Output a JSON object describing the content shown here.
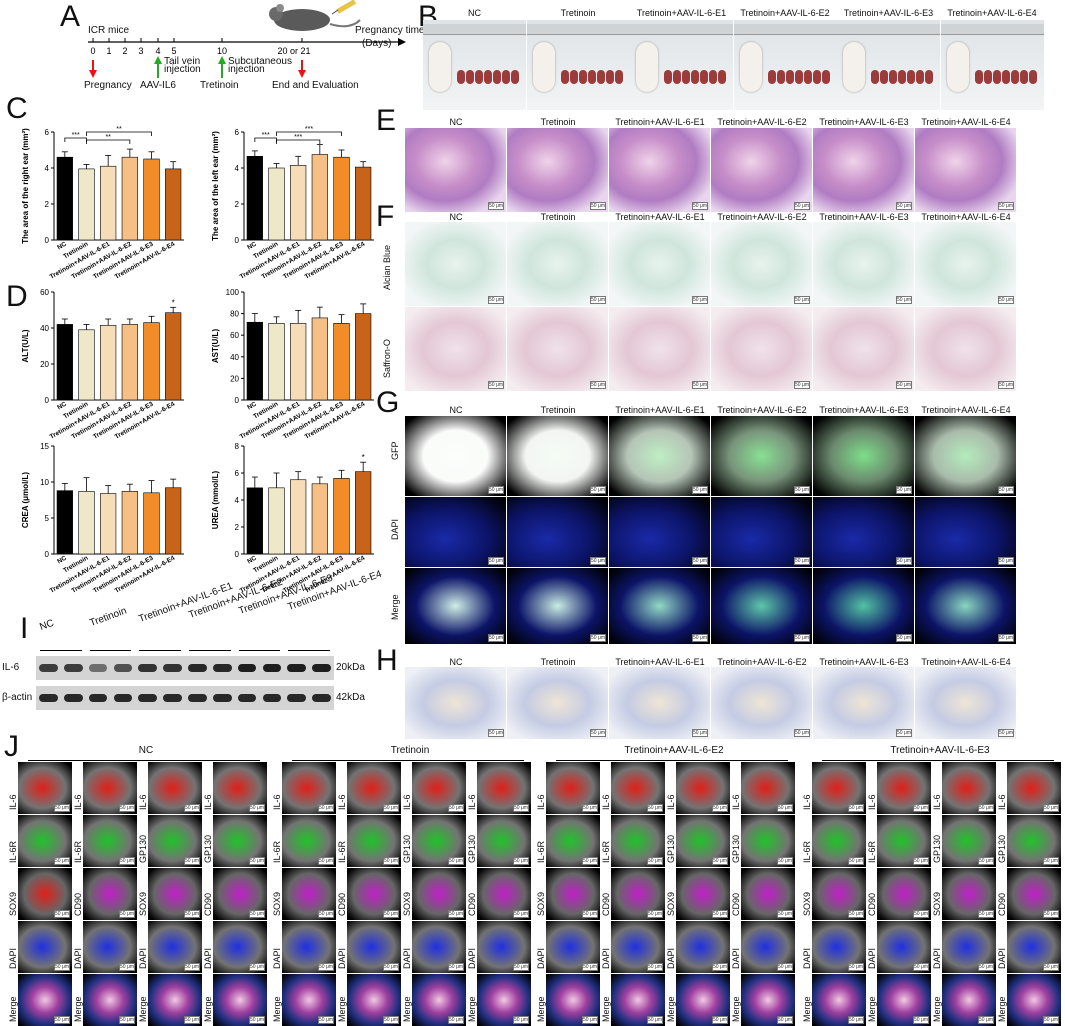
{
  "panels": {
    "A": "A",
    "B": "B",
    "C": "C",
    "D": "D",
    "E": "E",
    "F": "F",
    "G": "G",
    "H": "H",
    "I": "I",
    "J": "J"
  },
  "timeline": {
    "mouse_label": "ICR mice",
    "ticks": [
      "0",
      "1",
      "2",
      "3",
      "4",
      "5",
      "10",
      "20 or 21"
    ],
    "axis_label": "Pregnancy time",
    "axis_unit": "(Days)",
    "events": [
      "Pregnancy",
      "AAV-IL6",
      "Tretinoin",
      "End and Evaluation"
    ],
    "notes": [
      "Tail vein injection",
      "Subcutaneous injection"
    ]
  },
  "groups_full": [
    "NC",
    "Tretinoin",
    "Tretinoin+AAV-IL-6-E1",
    "Tretinoin+AAV-IL-6-E2",
    "Tretinoin+AAV-IL-6-E3",
    "Tretinoin+AAV-IL-6-E4"
  ],
  "groups_short": [
    "NC",
    "Tretinoin",
    "Tretinoin+AAV-IL-6-E1",
    "Tretinoin+AAV-IL-6-E2",
    "Tretinoin+AAV-IL-6-E3",
    "Tretinoin+AAV-IL-6-E4"
  ],
  "bar_colors": [
    "#000000",
    "#efe8c8",
    "#f7dcb8",
    "#f5bf86",
    "#f28c28",
    "#c8641a"
  ],
  "stains_F": [
    "Alcian Blue",
    "Saffron-O"
  ],
  "stains_G": [
    "GFP",
    "DAPI",
    "Merge"
  ],
  "scale_bar": "50 μm",
  "western": {
    "groups": [
      "NC",
      "Tretinoin",
      "Tretinoin+AAV-IL-6-E1",
      "Tretinoin+AAV-IL-6-E2",
      "Tretinoin+AAV-IL-6-E3",
      "Tretinoin+AAV-IL-6-E4"
    ],
    "rows": [
      {
        "name": "IL-6",
        "size": "20kDa"
      },
      {
        "name": "β-actin",
        "size": "42kDa"
      }
    ],
    "il6_intensity": [
      0.8,
      0.8,
      0.55,
      0.7,
      0.85,
      0.85,
      0.9,
      0.9,
      0.95,
      0.95,
      0.95,
      0.95
    ]
  },
  "J": {
    "groups": [
      "NC",
      "Tretinoin",
      "Tretinoin+AAV-IL-6-E2",
      "Tretinoin+AAV-IL-6-E3"
    ],
    "grid": [
      [
        "IL-6",
        "IL-6",
        "IL-6",
        "IL-6"
      ],
      [
        "IL-6R",
        "IL-6R",
        "GP130",
        "GP130"
      ],
      [
        "SOX9",
        "CD90",
        "SOX9",
        "CD90"
      ],
      [
        "DAPI",
        "DAPI",
        "DAPI",
        "DAPI"
      ],
      [
        "Merge",
        "Merge",
        "Merge",
        "Merge"
      ]
    ],
    "row_colors": [
      "#e0201a",
      "#22c22a",
      "#c020c8",
      "#2030e0",
      "#e080c0"
    ]
  },
  "chart_data": [
    {
      "type": "bar",
      "panel": "C-left",
      "ylabel": "The area of the right ear (mm²)",
      "ylim": [
        0,
        6
      ],
      "yticks": [
        0,
        2,
        4,
        6
      ],
      "categories": [
        "NC",
        "Tretinoin",
        "Tretinoin+AAV-IL-6-E1",
        "Tretinoin+AAV-IL-6-E2",
        "Tretinoin+AAV-IL-6-E3",
        "Tretinoin+AAV-IL-6-E4"
      ],
      "values": [
        4.6,
        3.95,
        4.1,
        4.6,
        4.5,
        3.95
      ],
      "errors": [
        0.3,
        0.25,
        0.6,
        0.45,
        0.4,
        0.4
      ],
      "significance": [
        [
          "***",
          0,
          1
        ],
        [
          "**",
          1,
          4
        ],
        [
          "**",
          1,
          3
        ]
      ]
    },
    {
      "type": "bar",
      "panel": "C-right",
      "ylabel": "The area of the left ear (mm²)",
      "ylim": [
        0,
        6
      ],
      "yticks": [
        0,
        2,
        4,
        6
      ],
      "categories": [
        "NC",
        "Tretinoin",
        "Tretinoin+AAV-IL-6-E1",
        "Tretinoin+AAV-IL-6-E2",
        "Tretinoin+AAV-IL-6-E3",
        "Tretinoin+AAV-IL-6-E4"
      ],
      "values": [
        4.65,
        4.0,
        4.15,
        4.75,
        4.6,
        4.05
      ],
      "errors": [
        0.3,
        0.25,
        0.5,
        0.55,
        0.4,
        0.3
      ],
      "significance": [
        [
          "***",
          0,
          1
        ],
        [
          "***",
          1,
          4
        ],
        [
          "***",
          1,
          3
        ]
      ]
    },
    {
      "type": "bar",
      "panel": "D-ALT",
      "ylabel": "ALT(U/L)",
      "ylim": [
        0,
        60
      ],
      "yticks": [
        0,
        20,
        40,
        60
      ],
      "categories": [
        "NC",
        "Tretinoin",
        "Tretinoin+AAV-IL-6-E1",
        "Tretinoin+AAV-IL-6-E2",
        "Tretinoin+AAV-IL-6-E3",
        "Tretinoin+AAV-IL-6-E4"
      ],
      "values": [
        42,
        39,
        41.5,
        42,
        43,
        48.5
      ],
      "errors": [
        3,
        3,
        3.5,
        3,
        3.5,
        3
      ],
      "significance": [
        [
          "*",
          5,
          5
        ]
      ]
    },
    {
      "type": "bar",
      "panel": "D-AST",
      "ylabel": "AST(U/L)",
      "ylim": [
        0,
        100
      ],
      "yticks": [
        0,
        20,
        40,
        60,
        80,
        100
      ],
      "categories": [
        "NC",
        "Tretinoin",
        "Tretinoin+AAV-IL-6-E1",
        "Tretinoin+AAV-IL-6-E2",
        "Tretinoin+AAV-IL-6-E3",
        "Tretinoin+AAV-IL-6-E4"
      ],
      "values": [
        72,
        71,
        71,
        76,
        71,
        80
      ],
      "errors": [
        8,
        6,
        12,
        10,
        8,
        9
      ],
      "significance": []
    },
    {
      "type": "bar",
      "panel": "D-CREA",
      "ylabel": "CREA (μmol/L)",
      "ylim": [
        0,
        15
      ],
      "yticks": [
        0,
        5,
        10,
        15
      ],
      "categories": [
        "NC",
        "Tretinoin",
        "Tretinoin+AAV-IL-6-E1",
        "Tretinoin+AAV-IL-6-E2",
        "Tretinoin+AAV-IL-6-E3",
        "Tretinoin+AAV-IL-6-E4"
      ],
      "values": [
        8.8,
        8.7,
        8.4,
        8.7,
        8.5,
        9.2
      ],
      "errors": [
        1,
        1.9,
        1.1,
        1,
        1.7,
        1.2
      ],
      "significance": []
    },
    {
      "type": "bar",
      "panel": "D-UREA",
      "ylabel": "UREA (mmol/L)",
      "ylim": [
        0,
        8
      ],
      "yticks": [
        0,
        2,
        4,
        6,
        8
      ],
      "categories": [
        "NC",
        "Tretinoin",
        "Tretinoin+AAV-IL-6-E1",
        "Tretinoin+AAV-IL-6-E2",
        "Tretinoin+AAV-IL-6-E3",
        "Tretinoin+AAV-IL-6-E4"
      ],
      "values": [
        4.9,
        4.9,
        5.5,
        5.2,
        5.6,
        6.1
      ],
      "errors": [
        0.8,
        1.1,
        0.6,
        0.5,
        0.6,
        0.7
      ],
      "significance": [
        [
          "*",
          5,
          5
        ]
      ]
    }
  ]
}
